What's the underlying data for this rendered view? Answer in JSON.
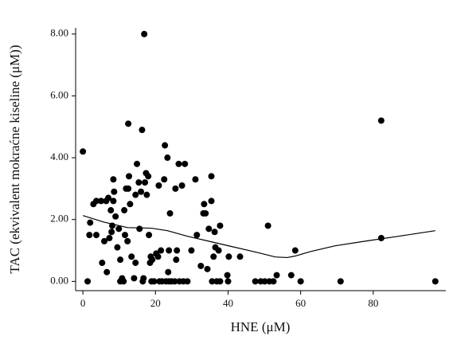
{
  "chart_data": {
    "type": "scatter",
    "x_label": "HNE (μM)",
    "y_label": "TAC (ekvivalent mokraćne kiseline (μM))",
    "xlim": [
      -2,
      100
    ],
    "ylim": [
      -0.3,
      8.2
    ],
    "xticks": [
      0,
      20,
      40,
      60,
      80
    ],
    "yticks": [
      {
        "value": 0,
        "label": "0.00"
      },
      {
        "value": 2,
        "label": "2.00"
      },
      {
        "value": 4,
        "label": "4.00"
      },
      {
        "value": 6,
        "label": "6.00"
      },
      {
        "value": 8,
        "label": "8.00"
      }
    ],
    "color": "#000000",
    "x": [
      0,
      1.3,
      1.8,
      2,
      2.9,
      3.7,
      3.7,
      5,
      5.3,
      5.9,
      6.4,
      6.6,
      7,
      7.3,
      7.7,
      7.9,
      8.1,
      8.4,
      8.4,
      8.6,
      9,
      9.5,
      9.9,
      10.3,
      10.3,
      10.8,
      11.2,
      11.4,
      11.6,
      11.9,
      12.3,
      12.5,
      12.5,
      12.7,
      13,
      13.4,
      14.1,
      14.5,
      14.5,
      14.9,
      15.4,
      15.6,
      16,
      16.3,
      16.5,
      16.7,
      16.9,
      17.1,
      17.4,
      17.6,
      18,
      18.2,
      18.5,
      18.7,
      18.9,
      19.1,
      19.6,
      20.2,
      20.7,
      20.9,
      21.1,
      21.5,
      21.8,
      22.4,
      22.6,
      22.9,
      23.3,
      23.5,
      23.7,
      23.7,
      24,
      24.4,
      25.3,
      25.5,
      25.7,
      25.9,
      26.4,
      26.6,
      27.3,
      27.7,
      28.1,
      28.8,
      29.9,
      31,
      31.4,
      32.5,
      33.2,
      33.4,
      33.8,
      34.3,
      34.7,
      35.4,
      35.4,
      35.6,
      36,
      36.3,
      36.5,
      36.9,
      37.4,
      37.8,
      37.8,
      39.8,
      40,
      40.2,
      43.3,
      47.5,
      49,
      50.1,
      51,
      51.4,
      52.5,
      53.4,
      57.4,
      58.5,
      60,
      71,
      82.2,
      82.2,
      97.1
    ],
    "values": [
      4.2,
      0,
      1.5,
      1.9,
      2.5,
      1.5,
      2.6,
      2.6,
      0.6,
      1.3,
      2.6,
      0.3,
      2.7,
      1.4,
      2.3,
      1.6,
      1.8,
      3.3,
      2.6,
      2.9,
      2.1,
      1.1,
      1.7,
      0.7,
      0,
      0.1,
      0,
      2.3,
      1.5,
      3,
      1.3,
      5.1,
      3,
      3.4,
      2.5,
      0.8,
      0.1,
      2.8,
      0.6,
      3.8,
      3.2,
      1.7,
      2.9,
      4.9,
      0,
      0.1,
      8,
      3.2,
      3.5,
      2.8,
      3.4,
      1.5,
      0.6,
      0.8,
      0,
      0.7,
      0,
      0.9,
      0.8,
      3.1,
      0,
      1,
      0,
      3.3,
      4.4,
      0,
      4,
      0.3,
      1,
      0,
      2.2,
      0,
      0,
      3,
      0.7,
      1,
      3.8,
      0,
      3.1,
      0,
      3.8,
      0,
      1,
      3.3,
      1.5,
      0.5,
      2.2,
      2.5,
      2.2,
      0.4,
      1.7,
      2.6,
      3.4,
      0,
      0.8,
      1.6,
      1.1,
      0,
      1,
      1.8,
      0,
      0.2,
      0,
      0.8,
      0.8,
      0,
      0,
      0,
      1.8,
      0,
      0,
      0.2,
      0.2,
      1,
      0,
      0,
      5.2,
      1.4,
      0
    ],
    "trend": {
      "x": [
        0,
        5.7,
        12.3,
        18.9,
        23.3,
        28.8,
        34.3,
        40.9,
        47.5,
        53,
        56.3,
        58.5,
        62.9,
        69.5,
        78.3,
        87,
        97.1
      ],
      "values": [
        2.13,
        1.92,
        1.74,
        1.72,
        1.64,
        1.46,
        1.31,
        1.13,
        0.95,
        0.79,
        0.77,
        0.82,
        0.97,
        1.15,
        1.31,
        1.46,
        1.64
      ]
    }
  }
}
